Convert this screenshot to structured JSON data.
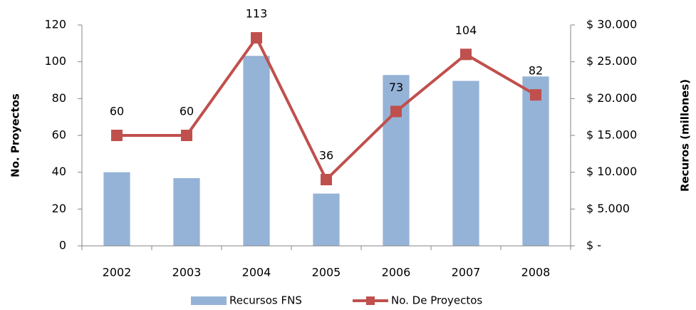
{
  "chart_data": {
    "type": "bar_line",
    "categories": [
      "2002",
      "2003",
      "2004",
      "2005",
      "2006",
      "2007",
      "2008"
    ],
    "series": [
      {
        "name": "Recursos FNS",
        "type": "bar",
        "axis": "y2",
        "color": "#95b3d7",
        "values": [
          10000,
          9200,
          25800,
          7100,
          23200,
          22400,
          23000
        ]
      },
      {
        "name": "No. De Proyectos",
        "type": "line",
        "axis": "y",
        "color": "#c0504d",
        "values": [
          60,
          60,
          113,
          36,
          73,
          104,
          82
        ]
      }
    ],
    "ylabel": "No. Proyectos",
    "y2label": "Recuros (millones)",
    "ylim": [
      0,
      120
    ],
    "yticks": [
      0,
      20,
      40,
      60,
      80,
      100,
      120
    ],
    "y2lim": [
      0,
      30000
    ],
    "y2ticks": [
      {
        "value": 0,
        "label": "$ -"
      },
      {
        "value": 5000,
        "label": "$ 5.000"
      },
      {
        "value": 10000,
        "label": "$ 10.000"
      },
      {
        "value": 15000,
        "label": "$ 15.000"
      },
      {
        "value": 20000,
        "label": "$ 20.000"
      },
      {
        "value": 25000,
        "label": "$ 25.000"
      },
      {
        "value": 30000,
        "label": "$ 30.000"
      }
    ],
    "grid": false
  }
}
